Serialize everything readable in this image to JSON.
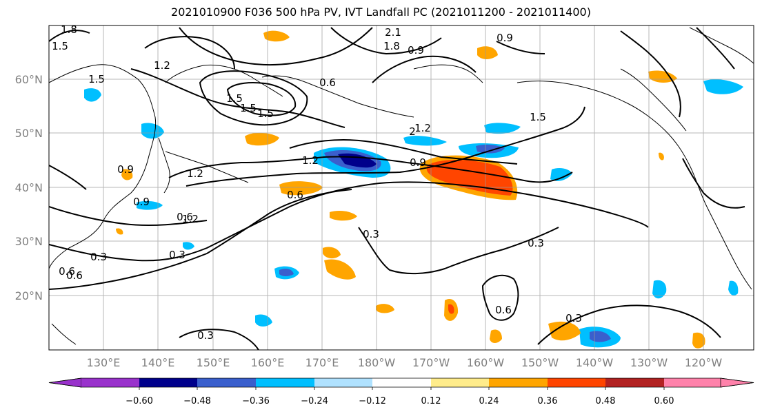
{
  "title": "2021010900 F036 500 hPa PV, IVT Landfall PC (2021011200 - 2021011400)",
  "lat_labels": [
    "60°N",
    "50°N",
    "40°N",
    "30°N",
    "20°N"
  ],
  "lon_labels": [
    "130°E",
    "140°E",
    "150°E",
    "160°E",
    "170°E",
    "180°W",
    "170°W",
    "160°W",
    "150°W",
    "140°W",
    "130°W",
    "120°W"
  ],
  "contour_labels": [
    "1.8",
    "1.5",
    "1.5",
    "1.2",
    "1.5",
    "1.5",
    "0.6",
    "2.1",
    "1.8",
    "0.9",
    "0.9",
    "0.9",
    "1.5",
    "1.2",
    "1.2",
    "0.9",
    "0.9",
    "1.2",
    "1.2",
    "0.6",
    "0.6",
    "0.3",
    "0.3",
    "0.3",
    "0.6",
    "0.3",
    "0.6",
    "0.3",
    "0.6",
    "0.3",
    "1.5",
    "2"
  ],
  "colorbar": {
    "ticks": [
      "−0.60",
      "−0.48",
      "−0.36",
      "−0.24",
      "−0.12",
      "0.12",
      "0.24",
      "0.36",
      "0.48",
      "0.60"
    ],
    "colors": [
      "#9932cc",
      "#00008b",
      "#3a5fcd",
      "#00bfff",
      "#b0e2ff",
      "#ffffff",
      "#ffec8b",
      "#ffa500",
      "#ff4500",
      "#b22222",
      "#ff82ab"
    ]
  }
}
